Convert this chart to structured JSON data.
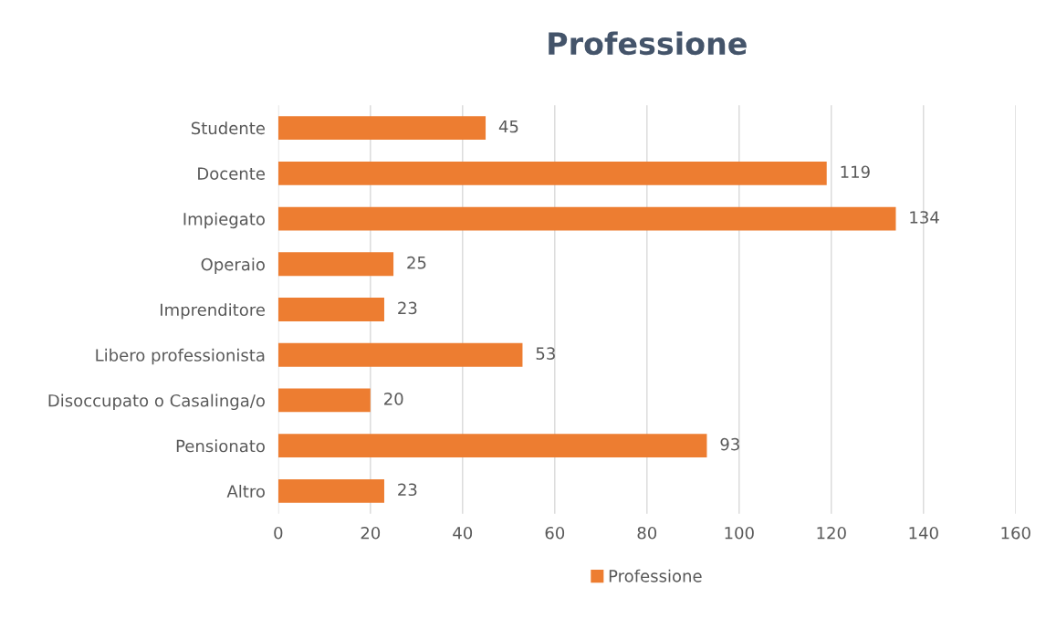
{
  "chart_data": {
    "type": "bar",
    "orientation": "horizontal",
    "title": "Professione",
    "categories": [
      "Studente",
      "Docente",
      "Impiegato",
      "Operaio",
      "Imprenditore",
      "Libero professionista",
      "Disoccupato o Casalinga/o",
      "Pensionato",
      "Altro"
    ],
    "series": [
      {
        "name": "Professione",
        "color": "#ed7d31",
        "values": [
          45,
          119,
          134,
          25,
          23,
          53,
          20,
          93,
          23
        ]
      }
    ],
    "xlim": [
      0,
      160
    ],
    "xticks": [
      0,
      20,
      40,
      60,
      80,
      100,
      120,
      140,
      160
    ],
    "grid": "x",
    "legend": "bottom",
    "data_labels": true
  }
}
